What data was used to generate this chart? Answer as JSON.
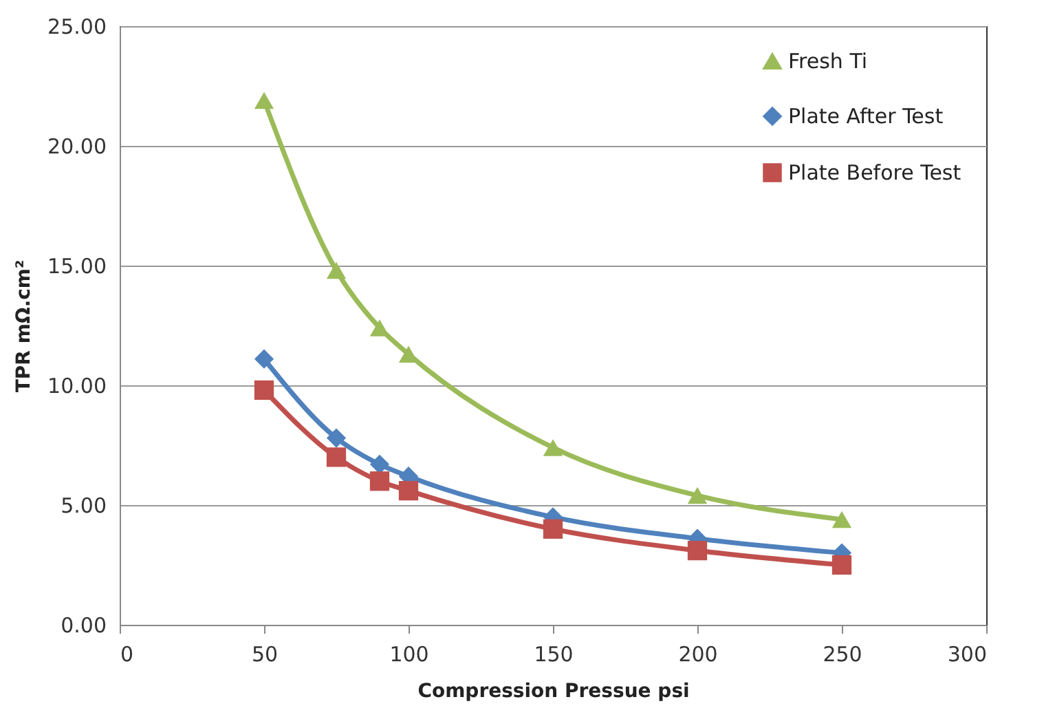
{
  "chart_data": {
    "type": "line",
    "xlabel": "Compression Pressue   psi",
    "ylabel": "TPR  mΩ.cm²",
    "x": [
      50,
      75,
      90,
      100,
      150,
      200,
      250
    ],
    "series": [
      {
        "name": "Fresh Ti",
        "color": "#9bbb59",
        "marker": "triangle",
        "values": [
          21.9,
          14.8,
          12.4,
          11.3,
          7.4,
          5.4,
          4.4
        ]
      },
      {
        "name": "Plate After Test",
        "color": "#4f81bd",
        "marker": "diamond",
        "values": [
          11.1,
          7.8,
          6.7,
          6.2,
          4.5,
          3.6,
          3.0
        ]
      },
      {
        "name": "Plate Before Test",
        "color": "#c0504d",
        "marker": "square",
        "values": [
          9.8,
          7.0,
          6.0,
          5.6,
          4.0,
          3.1,
          2.5
        ]
      }
    ],
    "xlim": [
      0,
      300
    ],
    "xticks": [
      0,
      50,
      100,
      150,
      200,
      250,
      300
    ],
    "ylim": [
      0,
      25
    ],
    "yticks": [
      {
        "value": 0,
        "label": "0.00"
      },
      {
        "value": 5,
        "label": "5.00"
      },
      {
        "value": 10,
        "label": "10.00"
      },
      {
        "value": 15,
        "label": "15.00"
      },
      {
        "value": 20,
        "label": "20.00"
      },
      {
        "value": 25,
        "label": "25.00"
      }
    ],
    "grid": "y",
    "legend": "top right",
    "line_style": "solid"
  }
}
